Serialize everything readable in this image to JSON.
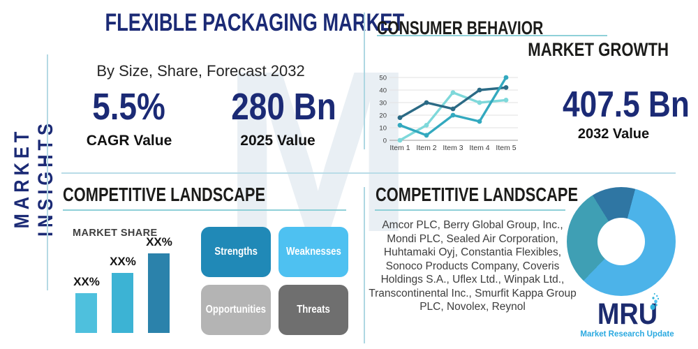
{
  "left_panel": {
    "vertical_label": "MARKET INSIGHTS",
    "title": "FLEXIBLE PACKAGING MARKET",
    "subtitle": "By Size, Share, Forecast 2032",
    "stats": [
      {
        "value": "5.5%",
        "label": "CAGR Value"
      },
      {
        "value": "280 Bn",
        "label": "2025 Value"
      }
    ]
  },
  "growth_panel": {
    "heading_consumer": "CONSUMER BEHAVIOR",
    "heading_growth": "MARKET GROWTH",
    "stat": {
      "value": "407.5 Bn",
      "label": "2032 Value"
    }
  },
  "competitive_left": {
    "heading": "COMPETITIVE LANDSCAPE",
    "market_share_label": "MARKET SHARE",
    "swot": [
      {
        "label": "Strengths",
        "color": "#2089b7"
      },
      {
        "label": "Weaknesses",
        "color": "#4ec1f1"
      },
      {
        "label": "Opportunities",
        "color": "#b4b4b4"
      },
      {
        "label": "Threats",
        "color": "#6f6f6f"
      }
    ]
  },
  "competitive_right": {
    "heading": "COMPETITIVE LANDSCAPE",
    "companies": "Amcor PLC, Berry Global Group, Inc., Mondi PLC, Sealed Air Corporation, Huhtamaki Oyj, Constantia Flexibles, Sonoco Products Company, Coveris Holdings S.A., Uflex Ltd., Winpak Ltd., Transcontinental Inc., Smurfit Kappa Group PLC, Novolex, Reynol"
  },
  "logo": {
    "text": "MRU",
    "tagline": "Market Research Update"
  },
  "colors": {
    "navy": "#1b2a75",
    "heading_black": "#1c1c1a",
    "underline_teal": "#8fd0d8",
    "divider_blue": "#b9dce7",
    "logo_navy": "#1c2b6e",
    "logo_sky": "#2aa9e0"
  },
  "chart_data": [
    {
      "id": "market-growth-line",
      "type": "line",
      "title": "",
      "xlabel": "",
      "ylabel": "",
      "categories": [
        "Item 1",
        "Item 2",
        "Item 3",
        "Item 4",
        "Item 5"
      ],
      "series": [
        {
          "name": "series-aqua",
          "color": "#7ed8da",
          "values": [
            0,
            12,
            38,
            30,
            32
          ]
        },
        {
          "name": "series-navy",
          "color": "#2b6a85",
          "values": [
            18,
            30,
            25,
            40,
            42
          ]
        },
        {
          "name": "series-teal",
          "color": "#33a9bf",
          "values": [
            12,
            4,
            20,
            15,
            50
          ]
        }
      ],
      "ylim": [
        0,
        50
      ],
      "yticks": [
        0,
        10,
        20,
        30,
        40,
        50
      ],
      "grid": true,
      "legend": "none"
    },
    {
      "id": "market-share-bar",
      "type": "bar",
      "title": "MARKET SHARE",
      "value_labels": [
        "XX%",
        "XX%",
        "XX%"
      ],
      "values": [
        30,
        45,
        60
      ],
      "colors": [
        "#4ec0dd",
        "#3cb3d4",
        "#2b82ab"
      ],
      "note_ylim": [
        0,
        63
      ]
    },
    {
      "id": "company-share-donut",
      "type": "pie",
      "start_angle_deg": 15,
      "donut_hole_ratio": 0.44,
      "slices": [
        {
          "name": "light-blue-slice",
          "value": 58,
          "color": "#4cb3e9"
        },
        {
          "name": "teal-slice",
          "value": 29,
          "color": "#3f9fb4"
        },
        {
          "name": "dark-blue-slice",
          "value": 13,
          "color": "#2f76a3"
        }
      ]
    }
  ]
}
